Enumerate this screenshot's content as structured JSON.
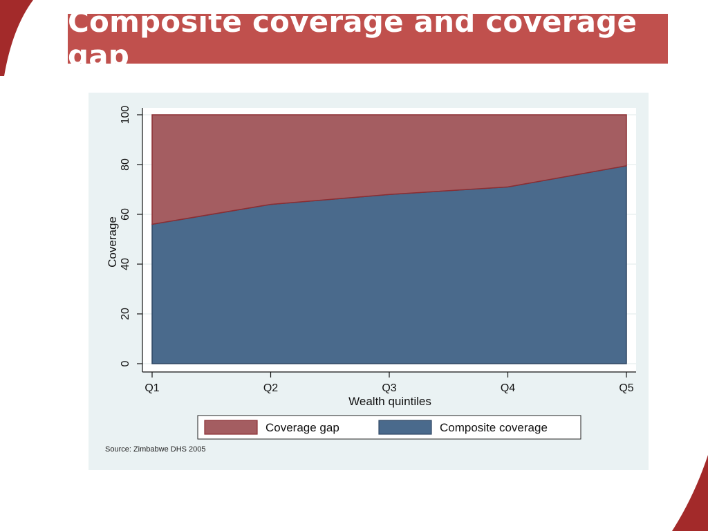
{
  "slide": {
    "title": "Composite coverage and coverage gap",
    "accent_color": "#c0504d"
  },
  "chart_data": {
    "type": "area",
    "stacked": true,
    "categories": [
      "Q1",
      "Q2",
      "Q3",
      "Q4",
      "Q5"
    ],
    "series": [
      {
        "name": "Composite coverage",
        "values": [
          56,
          64,
          68,
          71,
          79.5
        ],
        "color": "#4a6a8c"
      },
      {
        "name": "Coverage gap",
        "values": [
          44,
          36,
          32,
          29,
          20.5
        ],
        "color": "#a45d61"
      }
    ],
    "xlabel": "Wealth quintiles",
    "ylabel": "Coverage",
    "ylim": [
      0,
      100
    ],
    "yticks": [
      0,
      20,
      40,
      60,
      80,
      100
    ],
    "grid": true,
    "legend": [
      "Coverage gap",
      "Composite coverage"
    ],
    "legend_position": "bottom",
    "source": "Source: Zimbabwe DHS 2005"
  }
}
